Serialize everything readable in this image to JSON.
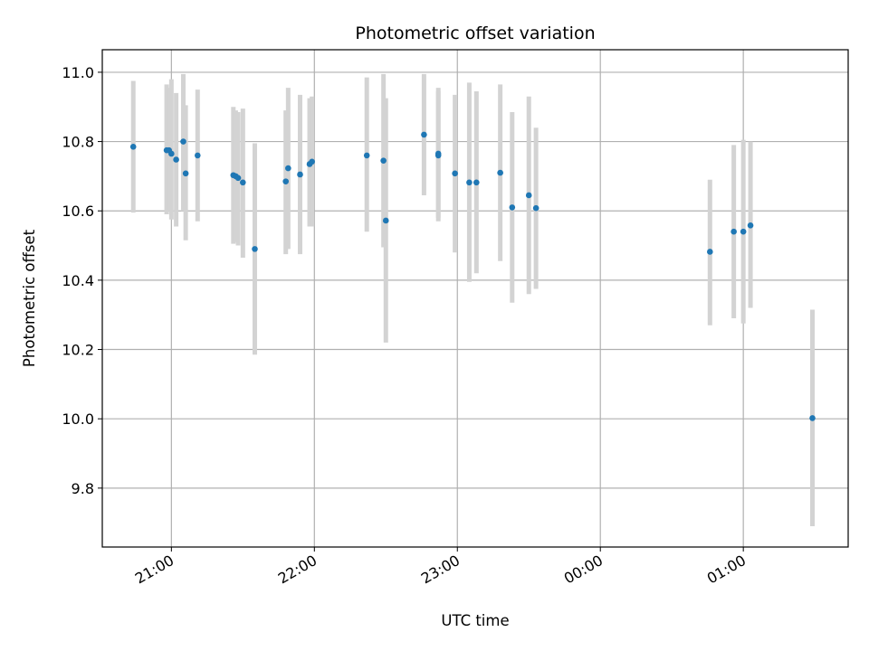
{
  "chart_data": {
    "type": "scatter",
    "title": "Photometric offset variation",
    "xlabel": "UTC time",
    "ylabel": "Photometric offset",
    "x_ticks": [
      {
        "time": "21:00",
        "label": "21:00"
      },
      {
        "time": "22:00",
        "label": "22:00"
      },
      {
        "time": "23:00",
        "label": "23:00"
      },
      {
        "time": "24:00",
        "label": "00:00"
      },
      {
        "time": "25:00",
        "label": "01:00"
      }
    ],
    "y_ticks": [
      9.8,
      10.0,
      10.2,
      10.4,
      10.6,
      10.8,
      11.0
    ],
    "xlim": [
      "20:31",
      "25:44"
    ],
    "ylim": [
      9.63,
      11.065
    ],
    "grid": true,
    "colors": {
      "point": "#1f77b4",
      "errorbar": "#d3d3d3",
      "grid": "#b0b0b0"
    },
    "points": [
      {
        "time": "20:44",
        "y": 10.785,
        "err_low": 10.595,
        "err_high": 10.975
      },
      {
        "time": "20:58",
        "y": 10.775,
        "err_low": 10.59,
        "err_high": 10.965
      },
      {
        "time": "20:59",
        "y": 10.775,
        "err_low": 10.6,
        "err_high": 10.955
      },
      {
        "time": "21:00",
        "y": 10.765,
        "err_low": 10.575,
        "err_high": 10.98
      },
      {
        "time": "21:02",
        "y": 10.748,
        "err_low": 10.555,
        "err_high": 10.94
      },
      {
        "time": "21:05",
        "y": 10.8,
        "err_low": 10.6,
        "err_high": 10.995
      },
      {
        "time": "21:06",
        "y": 10.708,
        "err_low": 10.515,
        "err_high": 10.905
      },
      {
        "time": "21:11",
        "y": 10.76,
        "err_low": 10.57,
        "err_high": 10.95
      },
      {
        "time": "21:26",
        "y": 10.703,
        "err_low": 10.505,
        "err_high": 10.9
      },
      {
        "time": "21:27",
        "y": 10.7,
        "err_low": 10.51,
        "err_high": 10.89
      },
      {
        "time": "21:28",
        "y": 10.695,
        "err_low": 10.5,
        "err_high": 10.885
      },
      {
        "time": "21:30",
        "y": 10.682,
        "err_low": 10.465,
        "err_high": 10.895
      },
      {
        "time": "21:35",
        "y": 10.49,
        "err_low": 10.185,
        "err_high": 10.795
      },
      {
        "time": "21:48",
        "y": 10.685,
        "err_low": 10.475,
        "err_high": 10.89
      },
      {
        "time": "21:49",
        "y": 10.723,
        "err_low": 10.49,
        "err_high": 10.955
      },
      {
        "time": "21:54",
        "y": 10.705,
        "err_low": 10.475,
        "err_high": 10.935
      },
      {
        "time": "21:58",
        "y": 10.735,
        "err_low": 10.555,
        "err_high": 10.925
      },
      {
        "time": "21:59",
        "y": 10.742,
        "err_low": 10.555,
        "err_high": 10.93
      },
      {
        "time": "22:22",
        "y": 10.76,
        "err_low": 10.54,
        "err_high": 10.985
      },
      {
        "time": "22:29",
        "y": 10.745,
        "err_low": 10.495,
        "err_high": 10.995
      },
      {
        "time": "22:30",
        "y": 10.572,
        "err_low": 10.22,
        "err_high": 10.925
      },
      {
        "time": "22:46",
        "y": 10.82,
        "err_low": 10.645,
        "err_high": 10.995
      },
      {
        "time": "22:52",
        "y": 10.765,
        "err_low": 10.57,
        "err_high": 10.955
      },
      {
        "time": "22:52",
        "y": 10.76,
        "err_low": 10.58,
        "err_high": 10.945
      },
      {
        "time": "22:59",
        "y": 10.708,
        "err_low": 10.48,
        "err_high": 10.935
      },
      {
        "time": "23:05",
        "y": 10.682,
        "err_low": 10.395,
        "err_high": 10.97
      },
      {
        "time": "23:08",
        "y": 10.682,
        "err_low": 10.42,
        "err_high": 10.945
      },
      {
        "time": "23:18",
        "y": 10.71,
        "err_low": 10.455,
        "err_high": 10.965
      },
      {
        "time": "23:23",
        "y": 10.61,
        "err_low": 10.335,
        "err_high": 10.885
      },
      {
        "time": "23:30",
        "y": 10.645,
        "err_low": 10.36,
        "err_high": 10.93
      },
      {
        "time": "23:33",
        "y": 10.608,
        "err_low": 10.375,
        "err_high": 10.84
      },
      {
        "time": "24:46",
        "y": 10.482,
        "err_low": 10.27,
        "err_high": 10.69
      },
      {
        "time": "24:56",
        "y": 10.54,
        "err_low": 10.29,
        "err_high": 10.79
      },
      {
        "time": "25:00",
        "y": 10.54,
        "err_low": 10.275,
        "err_high": 10.805
      },
      {
        "time": "25:03",
        "y": 10.558,
        "err_low": 10.32,
        "err_high": 10.8
      },
      {
        "time": "25:29",
        "y": 10.002,
        "err_low": 9.69,
        "err_high": 10.315
      }
    ]
  }
}
